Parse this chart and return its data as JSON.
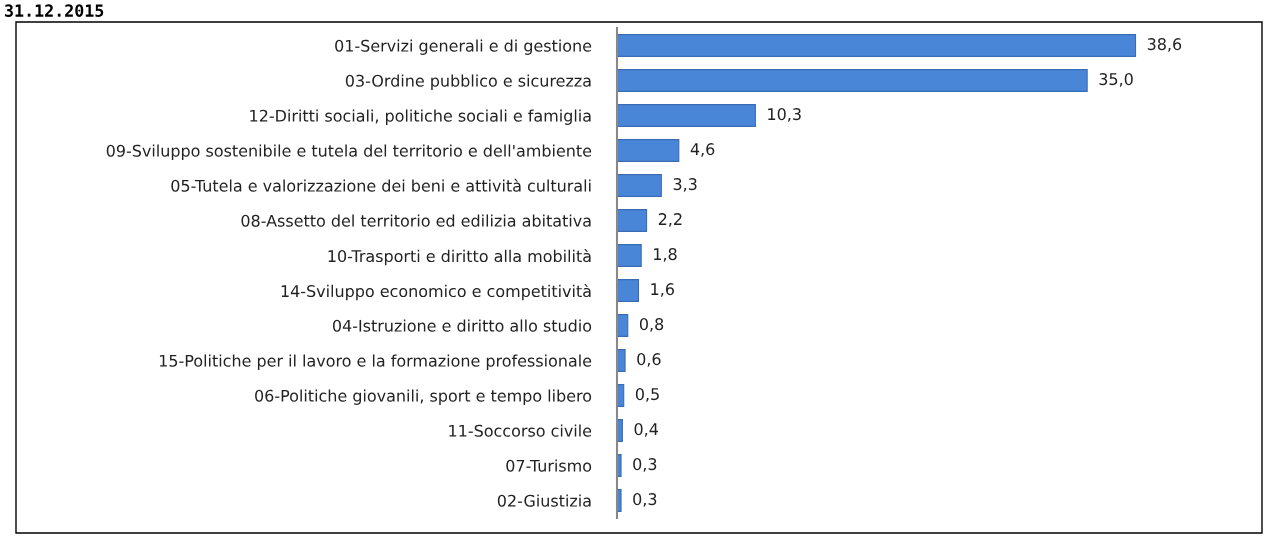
{
  "chart_data": {
    "type": "bar",
    "orientation": "horizontal",
    "title": "31.12.2015",
    "categories": [
      "01-Servizi generali e di gestione",
      "03-Ordine pubblico e sicurezza",
      "12-Diritti sociali, politiche sociali e famiglia",
      "09-Sviluppo sostenibile e tutela del territorio e dell'ambiente",
      "05-Tutela e valorizzazione dei beni e attività culturali",
      "08-Assetto del territorio ed edilizia abitativa",
      "10-Trasporti e diritto alla mobilità",
      "14-Sviluppo economico e competitività",
      "04-Istruzione e diritto allo studio",
      "15-Politiche per il lavoro e la formazione professionale",
      "06-Politiche giovanili, sport e tempo libero",
      "11-Soccorso civile",
      "07-Turismo",
      "02-Giustizia"
    ],
    "values": [
      38.6,
      35.0,
      10.3,
      4.6,
      3.3,
      2.2,
      1.8,
      1.6,
      0.8,
      0.6,
      0.5,
      0.4,
      0.3,
      0.3
    ],
    "value_labels": [
      "38,6",
      "35,0",
      "10,3",
      "4,6",
      "3,3",
      "2,2",
      "1,8",
      "1,6",
      "0,8",
      "0,6",
      "0,5",
      "0,4",
      "0,3",
      "0,3"
    ],
    "color": "#4a86d8"
  }
}
